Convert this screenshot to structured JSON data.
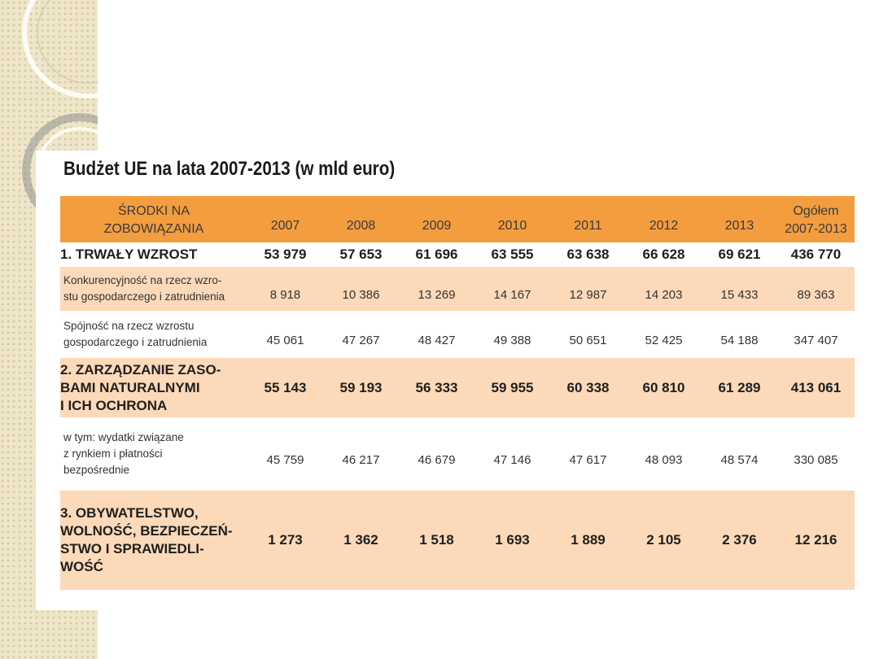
{
  "title": "Budżet UE na lata 2007-2013 (w mld euro)",
  "colors": {
    "header": "#f39d3f",
    "peach_row": "#fcd9b8",
    "strip": "#efe6c9"
  },
  "table": {
    "header": {
      "label": "ŚRODKI NA\nZOBOWIĄZANIA",
      "years": [
        "2007",
        "2008",
        "2009",
        "2010",
        "2011",
        "2012",
        "2013"
      ],
      "total": "Ogółem\n2007-2013"
    },
    "rows": [
      {
        "label": "1. TRWAŁY WZROST",
        "values": [
          "53 979",
          "57 653",
          "61 696",
          "63 555",
          "63 638",
          "66 628",
          "69 621"
        ],
        "total": "436 770"
      },
      {
        "label": "Konkurencyjność na rzecz wzro-\nstu gospodarczego i zatrudnienia",
        "values": [
          "8 918",
          "10 386",
          "13 269",
          "14 167",
          "12 987",
          "14 203",
          "15 433"
        ],
        "total": "89 363"
      },
      {
        "label": "Spójność na rzecz wzrostu\ngospodarczego i zatrudnienia",
        "values": [
          "45 061",
          "47 267",
          "48 427",
          "49 388",
          "50 651",
          "52 425",
          "54 188"
        ],
        "total": "347 407"
      },
      {
        "label": "2. ZARZĄDZANIE ZASO-\nBAMI NATURALNYMI\nI ICH OCHRONA",
        "values": [
          "55 143",
          "59 193",
          "56 333",
          "59 955",
          "60 338",
          "60 810",
          "61 289"
        ],
        "total": "413 061"
      },
      {
        "label": "w tym: wydatki związane\nz rynkiem i płatności\nbezpośrednie",
        "values": [
          "45 759",
          "46 217",
          "46 679",
          "47 146",
          "47 617",
          "48 093",
          "48 574"
        ],
        "total": "330 085"
      },
      {
        "label": "3. OBYWATELSTWO,\nWOLNOŚĆ, BEZPIECZEŃ-\nSTWO I SPRAWIEDLI-\nWOŚĆ",
        "values": [
          "1 273",
          "1 362",
          "1 518",
          "1 693",
          "1 889",
          "2 105",
          "2 376"
        ],
        "total": "12 216"
      }
    ]
  }
}
